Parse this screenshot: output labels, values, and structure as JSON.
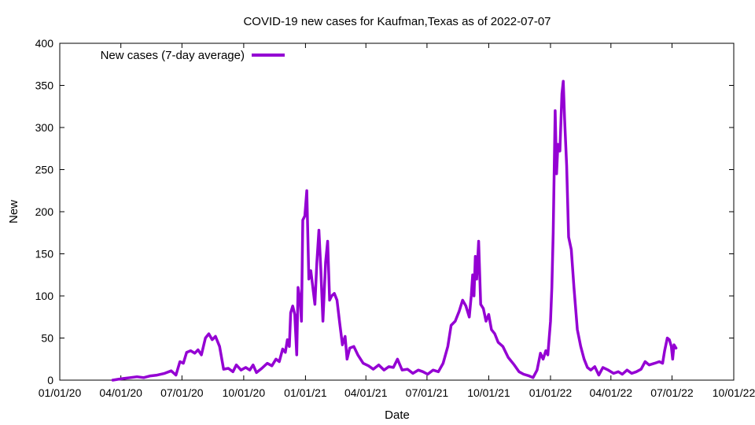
{
  "chart_data": {
    "type": "line",
    "title": "COVID-19 new cases for Kaufman,Texas as of 2022-07-07",
    "xlabel": "Date",
    "ylabel": "New",
    "xlim": [
      "2020-01-01",
      "2022-10-01"
    ],
    "ylim": [
      0,
      400
    ],
    "x_ticks": [
      "01/01/20",
      "04/01/20",
      "07/01/20",
      "10/01/20",
      "01/01/21",
      "04/01/21",
      "07/01/21",
      "10/01/21",
      "01/01/22",
      "04/01/22",
      "07/01/22",
      "10/01/22"
    ],
    "y_ticks": [
      0,
      50,
      100,
      150,
      200,
      250,
      300,
      350,
      400
    ],
    "grid": false,
    "legend_position": "top-left",
    "series": [
      {
        "name": "New cases (7-day average)",
        "color": "#9400d3",
        "points": [
          [
            "2020-03-20",
            0
          ],
          [
            "2020-03-28",
            1
          ],
          [
            "2020-04-05",
            2
          ],
          [
            "2020-04-15",
            3
          ],
          [
            "2020-04-25",
            4
          ],
          [
            "2020-05-05",
            3
          ],
          [
            "2020-05-15",
            5
          ],
          [
            "2020-05-25",
            6
          ],
          [
            "2020-06-05",
            8
          ],
          [
            "2020-06-15",
            11
          ],
          [
            "2020-06-22",
            6
          ],
          [
            "2020-06-28",
            22
          ],
          [
            "2020-07-03",
            20
          ],
          [
            "2020-07-08",
            33
          ],
          [
            "2020-07-14",
            35
          ],
          [
            "2020-07-20",
            32
          ],
          [
            "2020-07-25",
            36
          ],
          [
            "2020-07-30",
            30
          ],
          [
            "2020-08-05",
            50
          ],
          [
            "2020-08-10",
            55
          ],
          [
            "2020-08-15",
            48
          ],
          [
            "2020-08-20",
            52
          ],
          [
            "2020-08-26",
            40
          ],
          [
            "2020-09-01",
            13
          ],
          [
            "2020-09-08",
            14
          ],
          [
            "2020-09-15",
            10
          ],
          [
            "2020-09-20",
            18
          ],
          [
            "2020-09-27",
            12
          ],
          [
            "2020-10-04",
            15
          ],
          [
            "2020-10-10",
            12
          ],
          [
            "2020-10-15",
            18
          ],
          [
            "2020-10-20",
            9
          ],
          [
            "2020-10-28",
            14
          ],
          [
            "2020-11-05",
            20
          ],
          [
            "2020-11-12",
            17
          ],
          [
            "2020-11-18",
            25
          ],
          [
            "2020-11-23",
            22
          ],
          [
            "2020-11-28",
            37
          ],
          [
            "2020-12-02",
            33
          ],
          [
            "2020-12-05",
            48
          ],
          [
            "2020-12-08",
            40
          ],
          [
            "2020-12-10",
            80
          ],
          [
            "2020-12-13",
            88
          ],
          [
            "2020-12-16",
            78
          ],
          [
            "2020-12-19",
            30
          ],
          [
            "2020-12-21",
            110
          ],
          [
            "2020-12-24",
            95
          ],
          [
            "2020-12-26",
            70
          ],
          [
            "2020-12-28",
            190
          ],
          [
            "2020-12-31",
            195
          ],
          [
            "2021-01-03",
            225
          ],
          [
            "2021-01-06",
            120
          ],
          [
            "2021-01-09",
            130
          ],
          [
            "2021-01-12",
            110
          ],
          [
            "2021-01-15",
            90
          ],
          [
            "2021-01-18",
            140
          ],
          [
            "2021-01-21",
            178
          ],
          [
            "2021-01-24",
            130
          ],
          [
            "2021-01-27",
            70
          ],
          [
            "2021-01-31",
            140
          ],
          [
            "2021-02-03",
            165
          ],
          [
            "2021-02-06",
            95
          ],
          [
            "2021-02-09",
            100
          ],
          [
            "2021-02-13",
            103
          ],
          [
            "2021-02-17",
            95
          ],
          [
            "2021-02-21",
            68
          ],
          [
            "2021-02-25",
            42
          ],
          [
            "2021-03-01",
            52
          ],
          [
            "2021-03-04",
            25
          ],
          [
            "2021-03-08",
            38
          ],
          [
            "2021-03-14",
            40
          ],
          [
            "2021-03-20",
            30
          ],
          [
            "2021-03-28",
            20
          ],
          [
            "2021-04-05",
            17
          ],
          [
            "2021-04-12",
            13
          ],
          [
            "2021-04-20",
            18
          ],
          [
            "2021-04-28",
            12
          ],
          [
            "2021-05-05",
            16
          ],
          [
            "2021-05-12",
            15
          ],
          [
            "2021-05-18",
            25
          ],
          [
            "2021-05-25",
            12
          ],
          [
            "2021-06-02",
            13
          ],
          [
            "2021-06-10",
            8
          ],
          [
            "2021-06-18",
            12
          ],
          [
            "2021-06-25",
            10
          ],
          [
            "2021-07-02",
            7
          ],
          [
            "2021-07-10",
            12
          ],
          [
            "2021-07-18",
            10
          ],
          [
            "2021-07-25",
            20
          ],
          [
            "2021-08-01",
            40
          ],
          [
            "2021-08-06",
            65
          ],
          [
            "2021-08-12",
            70
          ],
          [
            "2021-08-18",
            82
          ],
          [
            "2021-08-23",
            95
          ],
          [
            "2021-08-28",
            88
          ],
          [
            "2021-09-02",
            75
          ],
          [
            "2021-09-05",
            100
          ],
          [
            "2021-09-07",
            125
          ],
          [
            "2021-09-09",
            100
          ],
          [
            "2021-09-11",
            147
          ],
          [
            "2021-09-13",
            120
          ],
          [
            "2021-09-16",
            165
          ],
          [
            "2021-09-19",
            90
          ],
          [
            "2021-09-23",
            85
          ],
          [
            "2021-09-27",
            70
          ],
          [
            "2021-10-01",
            78
          ],
          [
            "2021-10-05",
            60
          ],
          [
            "2021-10-10",
            55
          ],
          [
            "2021-10-15",
            45
          ],
          [
            "2021-10-22",
            40
          ],
          [
            "2021-10-30",
            27
          ],
          [
            "2021-11-08",
            18
          ],
          [
            "2021-11-15",
            10
          ],
          [
            "2021-11-22",
            7
          ],
          [
            "2021-11-30",
            5
          ],
          [
            "2021-12-06",
            3
          ],
          [
            "2021-12-12",
            12
          ],
          [
            "2021-12-17",
            32
          ],
          [
            "2021-12-21",
            25
          ],
          [
            "2021-12-25",
            35
          ],
          [
            "2021-12-28",
            30
          ],
          [
            "2022-01-01",
            70
          ],
          [
            "2022-01-03",
            110
          ],
          [
            "2022-01-05",
            175
          ],
          [
            "2022-01-08",
            320
          ],
          [
            "2022-01-10",
            245
          ],
          [
            "2022-01-12",
            280
          ],
          [
            "2022-01-15",
            272
          ],
          [
            "2022-01-18",
            340
          ],
          [
            "2022-01-20",
            355
          ],
          [
            "2022-01-22",
            310
          ],
          [
            "2022-01-25",
            255
          ],
          [
            "2022-01-28",
            170
          ],
          [
            "2022-02-01",
            155
          ],
          [
            "2022-02-05",
            110
          ],
          [
            "2022-02-10",
            60
          ],
          [
            "2022-02-15",
            40
          ],
          [
            "2022-02-20",
            25
          ],
          [
            "2022-02-25",
            15
          ],
          [
            "2022-03-02",
            12
          ],
          [
            "2022-03-08",
            16
          ],
          [
            "2022-03-14",
            6
          ],
          [
            "2022-03-20",
            15
          ],
          [
            "2022-03-28",
            12
          ],
          [
            "2022-04-05",
            8
          ],
          [
            "2022-04-12",
            10
          ],
          [
            "2022-04-18",
            7
          ],
          [
            "2022-04-25",
            12
          ],
          [
            "2022-05-02",
            8
          ],
          [
            "2022-05-09",
            10
          ],
          [
            "2022-05-16",
            13
          ],
          [
            "2022-05-22",
            22
          ],
          [
            "2022-05-28",
            18
          ],
          [
            "2022-06-05",
            20
          ],
          [
            "2022-06-12",
            22
          ],
          [
            "2022-06-17",
            20
          ],
          [
            "2022-06-20",
            35
          ],
          [
            "2022-06-24",
            50
          ],
          [
            "2022-06-27",
            48
          ],
          [
            "2022-06-30",
            40
          ],
          [
            "2022-07-02",
            25
          ],
          [
            "2022-07-04",
            42
          ],
          [
            "2022-07-07",
            38
          ]
        ]
      }
    ]
  }
}
